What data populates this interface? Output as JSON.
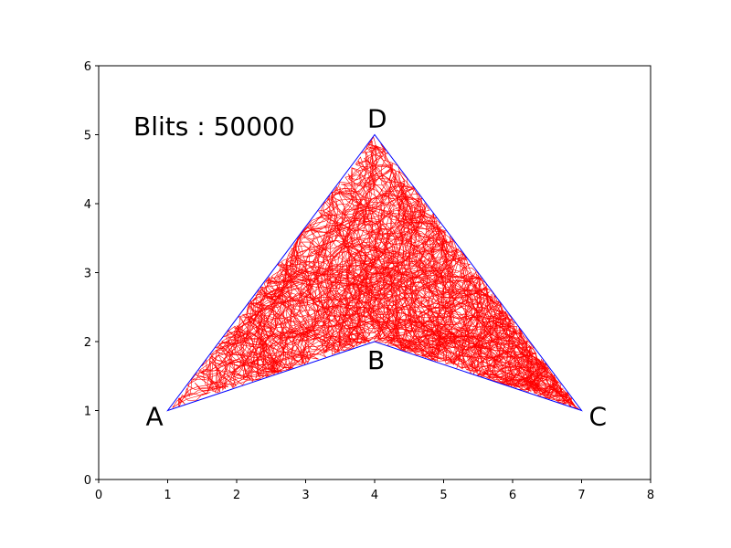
{
  "chart_data": {
    "type": "line",
    "title": "",
    "xlabel": "",
    "ylabel": "",
    "xlim": [
      0,
      8
    ],
    "ylim": [
      0,
      6
    ],
    "xticks": [
      "0",
      "1",
      "2",
      "3",
      "4",
      "5",
      "6",
      "7",
      "8"
    ],
    "yticks": [
      "0",
      "1",
      "2",
      "3",
      "4",
      "5",
      "6"
    ],
    "grid": false,
    "annotation": "Blits : 50000",
    "boundary_color": "#0000ff",
    "fill_color": "#ff0000",
    "vertices": [
      {
        "label": "A",
        "x": 1,
        "y": 1
      },
      {
        "label": "B",
        "x": 4,
        "y": 2
      },
      {
        "label": "C",
        "x": 7,
        "y": 1
      },
      {
        "label": "D",
        "x": 4,
        "y": 5
      }
    ]
  }
}
